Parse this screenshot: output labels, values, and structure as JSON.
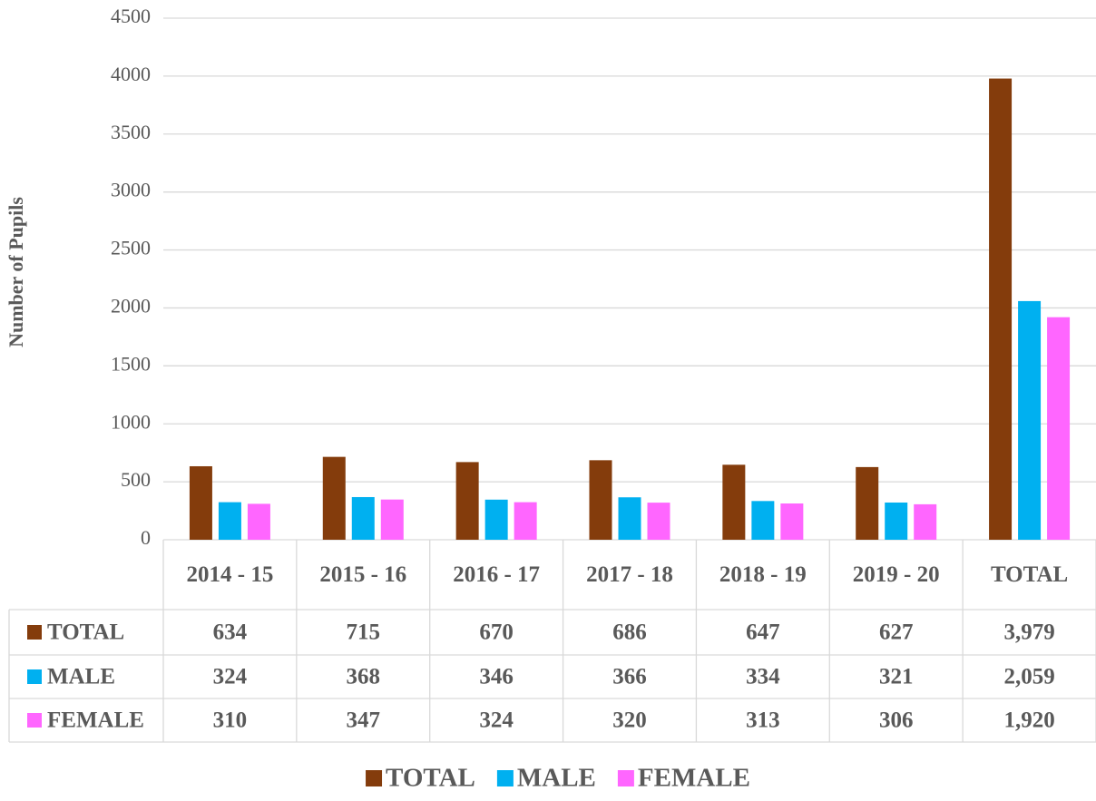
{
  "chart_data": {
    "type": "bar",
    "y_label": "Number of Pupils",
    "categories": [
      "2014 - 15",
      "2015 - 16",
      "2016 - 17",
      "2017 - 18",
      "2018 - 19",
      "2019 - 20",
      "TOTAL"
    ],
    "series": [
      {
        "name": "TOTAL",
        "color": "#843c0c",
        "values": [
          634,
          715,
          670,
          686,
          647,
          627,
          3979
        ],
        "value_labels": [
          "634",
          "715",
          "670",
          "686",
          "647",
          "627",
          "3,979"
        ]
      },
      {
        "name": "MALE",
        "color": "#00b0f0",
        "values": [
          324,
          368,
          346,
          366,
          334,
          321,
          2059
        ],
        "value_labels": [
          "324",
          "368",
          "346",
          "366",
          "334",
          "321",
          "2,059"
        ]
      },
      {
        "name": "FEMALE",
        "color": "#ff66ff",
        "values": [
          310,
          347,
          324,
          320,
          313,
          306,
          1920
        ],
        "value_labels": [
          "310",
          "347",
          "324",
          "320",
          "313",
          "306",
          "1,920"
        ]
      }
    ],
    "ylim": [
      0,
      4500
    ],
    "yticks": [
      0,
      500,
      1000,
      1500,
      2000,
      2500,
      3000,
      3500,
      4000,
      4500
    ],
    "grid": true,
    "legend": "bottom"
  }
}
